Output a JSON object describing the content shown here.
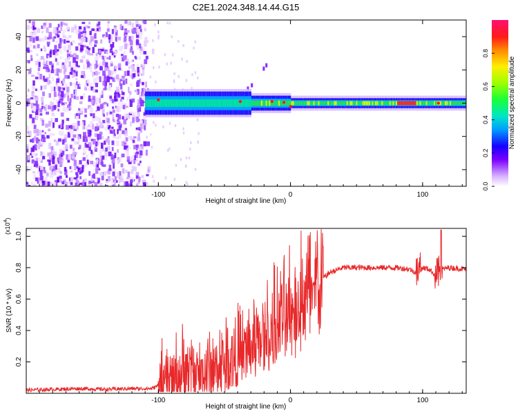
{
  "title": "C2E1.2024.348.14.44.G15",
  "chart_data": [
    {
      "type": "heatmap",
      "title": "C2E1.2024.348.14.44.G15",
      "xlabel": "Height of straight line (km)",
      "ylabel": "Frequency (Hz)",
      "xlim": [
        -200,
        133
      ],
      "ylim": [
        -50,
        50
      ],
      "xticks": [
        -100,
        0,
        100
      ],
      "xtick_labels": [
        "-100",
        "0",
        "100"
      ],
      "yticks": [
        -40,
        -20,
        0,
        20,
        40
      ],
      "ytick_labels": [
        "-40",
        "-20",
        "0",
        "20",
        "40"
      ],
      "colorbar": {
        "label": "Normalized spectral amplitude",
        "range": [
          0,
          1
        ],
        "ticks": [
          0.0,
          0.2,
          0.4,
          0.6,
          0.8
        ],
        "tick_labels": [
          "0.0",
          "0.2",
          "0.4",
          "0.6",
          "0.8"
        ]
      },
      "features": [
        {
          "name": "broadband noise region",
          "x_range": [
            -200,
            -110
          ],
          "freq_range": [
            -50,
            50
          ],
          "amplitude": 0.15
        },
        {
          "name": "narrow signal band",
          "x_range": [
            -110,
            133
          ],
          "center_freq_hz": 0,
          "amplitude_range": [
            0.3,
            1.0
          ]
        }
      ]
    },
    {
      "type": "line",
      "xlabel": "Height of straight line (km)",
      "ylabel": "SNR (10 * v/v)",
      "y_scale_label": "(x10",
      "y_scale_exponent": "4",
      "xlim": [
        -200,
        133
      ],
      "ylim": [
        0,
        1.05
      ],
      "xticks": [
        -100,
        0,
        100
      ],
      "xtick_labels": [
        "-100",
        "0",
        "100"
      ],
      "yticks": [
        0.2,
        0.4,
        0.6,
        0.8,
        1.0
      ],
      "ytick_labels": [
        "0.2",
        "0.4",
        "0.6",
        "0.8",
        "1.0"
      ],
      "series": [
        {
          "name": "SNR",
          "color": "#e8282a",
          "x": [
            -200,
            -180,
            -160,
            -140,
            -120,
            -105,
            -95,
            -85,
            -75,
            -65,
            -55,
            -45,
            -35,
            -28,
            -20,
            -12,
            -5,
            0,
            10,
            20,
            30,
            40,
            50,
            60,
            70,
            80,
            90,
            95,
            100,
            105,
            110,
            115,
            120,
            133
          ],
          "y": [
            0.02,
            0.025,
            0.03,
            0.025,
            0.03,
            0.03,
            0.07,
            0.12,
            0.15,
            0.13,
            0.18,
            0.22,
            0.26,
            0.32,
            0.36,
            0.42,
            0.48,
            0.52,
            0.62,
            0.7,
            0.77,
            0.8,
            0.8,
            0.8,
            0.8,
            0.8,
            0.79,
            0.77,
            0.8,
            0.79,
            0.75,
            0.79,
            0.8,
            0.79
          ]
        }
      ]
    }
  ]
}
